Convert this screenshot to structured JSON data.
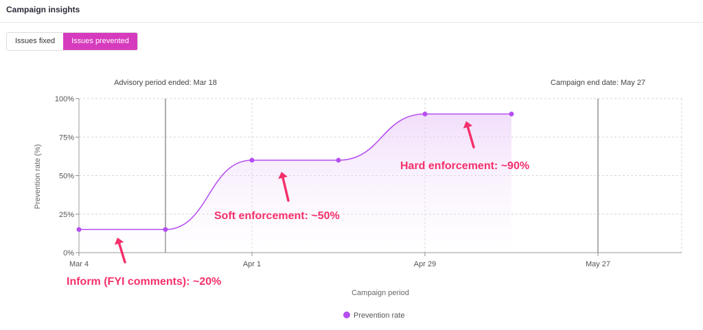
{
  "header": {
    "title": "Campaign insights"
  },
  "toggle": {
    "fixed_label": "Issues fixed",
    "prevented_label": "Issues prevented",
    "selected": "Issues prevented"
  },
  "colors": {
    "accent": "#d63bbd",
    "series": "#b54ef0",
    "annotation": "#f5306b"
  },
  "chart_data": {
    "type": "line",
    "ylabel": "Prevention rate (%)",
    "xlabel": "Campaign period",
    "x_ticks": [
      "Mar 4",
      "Apr 1",
      "Apr 29",
      "May 27"
    ],
    "y_ticks": [
      "0%",
      "25%",
      "50%",
      "75%",
      "100%"
    ],
    "ylim": [
      0,
      100
    ],
    "xlim": [
      "2024-03-04",
      "2024-06-08"
    ],
    "grid": true,
    "legend": "bottom",
    "series": [
      {
        "name": "Prevention rate",
        "points": [
          {
            "x": "2024-03-04",
            "y": 15
          },
          {
            "x": "2024-03-18",
            "y": 15
          },
          {
            "x": "2024-04-01",
            "y": 60
          },
          {
            "x": "2024-04-15",
            "y": 60
          },
          {
            "x": "2024-04-29",
            "y": 90
          },
          {
            "x": "2024-05-13",
            "y": 90
          }
        ]
      }
    ],
    "reference_lines": [
      {
        "x": "2024-03-18",
        "label": "Advisory period ended: Mar 18"
      },
      {
        "x": "2024-05-27",
        "label": "Campaign end date: May 27"
      }
    ],
    "annotations": [
      {
        "text": "Inform (FYI comments): ~20%"
      },
      {
        "text": "Soft enforcement: ~50%"
      },
      {
        "text": "Hard enforcement: ~90%"
      }
    ]
  }
}
